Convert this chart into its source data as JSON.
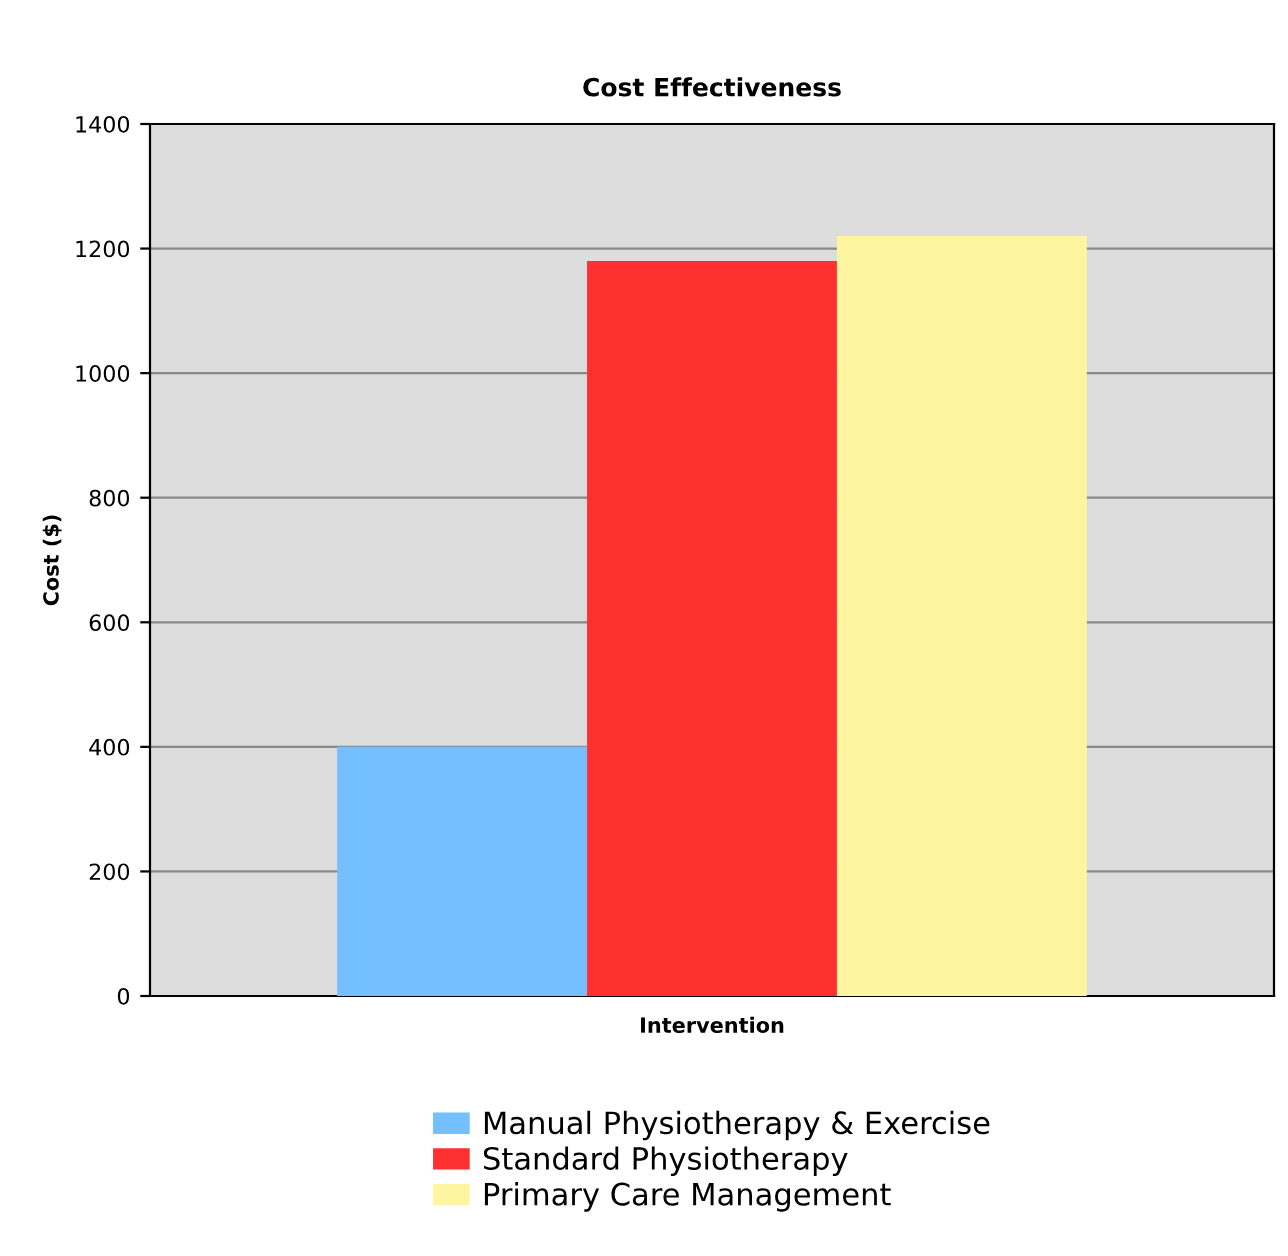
{
  "chart_data": {
    "type": "bar",
    "title": "Cost Effectiveness",
    "xlabel": "Intervention",
    "ylabel": "Cost ($)",
    "categories": [
      null
    ],
    "series": [
      {
        "name": "Manual Physiotherapy & Exercise",
        "color": "#73bfff",
        "values": [
          400
        ]
      },
      {
        "name": "Standard Physiotherapy",
        "color": "#ff3030",
        "values": [
          1180
        ]
      },
      {
        "name": "Primary Care Management",
        "color": "#fff5a0",
        "values": [
          1220
        ]
      }
    ],
    "ylim": [
      0,
      1400
    ],
    "yticks": [
      0,
      200,
      400,
      600,
      800,
      1000,
      1200,
      1400
    ],
    "grid": "y",
    "legend": "bottom"
  }
}
